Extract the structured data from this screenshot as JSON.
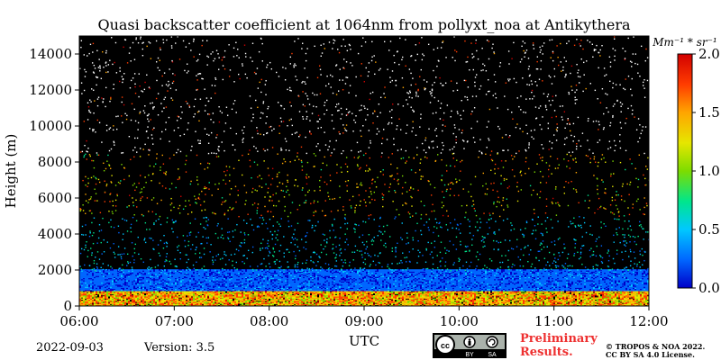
{
  "chart_data": {
    "type": "heatmap",
    "title": "Quasi backscatter coefficient at 1064nm from pollyxt_noa at Antikythera",
    "xlabel": "UTC",
    "ylabel": "Height (m)",
    "x_ticks": [
      "06:00",
      "07:00",
      "08:00",
      "09:00",
      "10:00",
      "11:00",
      "12:00"
    ],
    "xlim": [
      "06:00",
      "12:00"
    ],
    "y_ticks": [
      0,
      2000,
      4000,
      6000,
      8000,
      10000,
      12000,
      14000
    ],
    "ylim": [
      0,
      15000
    ],
    "colorbar": {
      "unit": "Mm⁻¹ * sr⁻¹",
      "ticks": [
        "0.0",
        "0.5",
        "1.0",
        "1.5",
        "2.0"
      ],
      "range": [
        0.0,
        2.0
      ],
      "colormap": [
        "#0000c8",
        "#0066ff",
        "#00c8ff",
        "#00e68c",
        "#7ddc00",
        "#e6e600",
        "#ffa500",
        "#ff3c00",
        "#d20000"
      ]
    },
    "background_color": "#000000",
    "layers": [
      {
        "height_range": [
          0,
          800
        ],
        "value": 1.3
      },
      {
        "height_range": [
          800,
          2000
        ],
        "value": 0.2
      },
      {
        "height_range": [
          2000,
          5000
        ],
        "value": 0.45
      },
      {
        "height_range": [
          5000,
          8500
        ],
        "value": 1.1
      }
    ]
  },
  "footer": {
    "date": "2022-09-03",
    "version": "Version: 3.5",
    "preliminary": [
      "Preliminary",
      "Results."
    ],
    "license": [
      "© TROPOS & NOA 2022.",
      "CC BY SA 4.0 License."
    ],
    "badge_labels": [
      "BY",
      "SA"
    ]
  }
}
